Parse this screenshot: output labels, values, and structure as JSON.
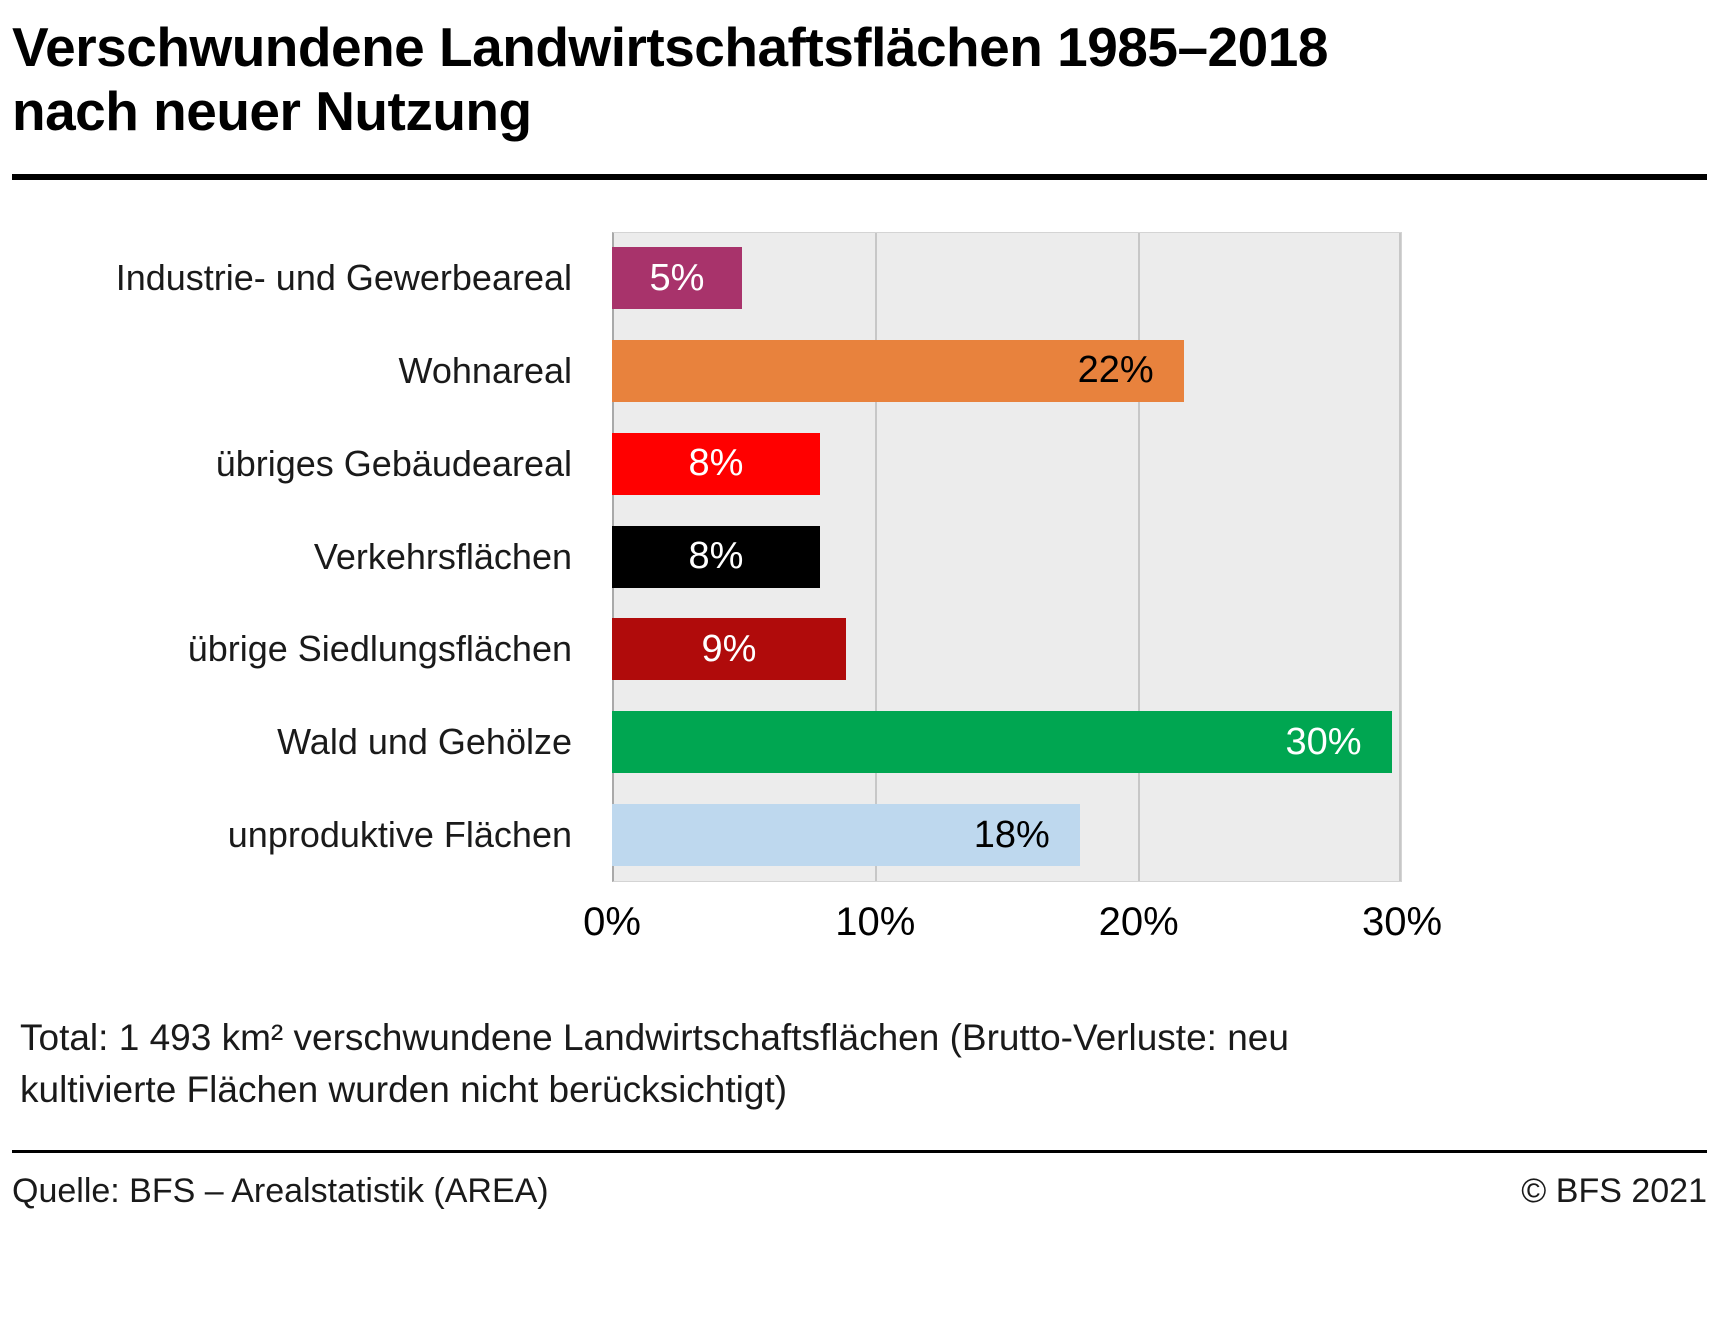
{
  "header": {
    "title_line1": "Verschwundene Landwirtschaftsflächen 1985–2018",
    "title_line2": "nach neuer Nutzung"
  },
  "chart_data": {
    "type": "bar",
    "orientation": "horizontal",
    "title": "Verschwundene Landwirtschaftsflächen 1985–2018 nach neuer Nutzung",
    "categories": [
      "Industrie- und Gewerbeareal",
      "Wohnareal",
      "übriges Gebäudeareal",
      "Verkehrsflächen",
      "übrige Siedlungsflächen",
      "Wald und Gehölze",
      "unproduktive Flächen"
    ],
    "values": [
      5,
      22,
      8,
      8,
      9,
      30,
      18
    ],
    "value_labels": [
      "5%",
      "22%",
      "8%",
      "8%",
      "9%",
      "30%",
      "18%"
    ],
    "bar_colors": [
      "#a8336b",
      "#e8823d",
      "#ff0000",
      "#000000",
      "#b00b0b",
      "#00a651",
      "#bed8ee"
    ],
    "label_colors": [
      "#ffffff",
      "#000000",
      "#ffffff",
      "#ffffff",
      "#ffffff",
      "#ffffff",
      "#000000"
    ],
    "label_align": [
      "center",
      "right",
      "center",
      "center",
      "center",
      "right",
      "right"
    ],
    "x_ticks": [
      "0%",
      "10%",
      "20%",
      "30%"
    ],
    "xlim": [
      0,
      30.4
    ],
    "grid": true,
    "plot_background": "#ececec",
    "xlabel": "",
    "ylabel": ""
  },
  "note": {
    "text": "Total: 1 493 km²  verschwundene Landwirtschaftsflächen (Brutto-Verluste: neu kultivierte Flächen wurden nicht berücksichtigt)"
  },
  "footer": {
    "source": "Quelle: BFS – Arealstatistik (AREA)",
    "copyright": "© BFS 2021"
  }
}
